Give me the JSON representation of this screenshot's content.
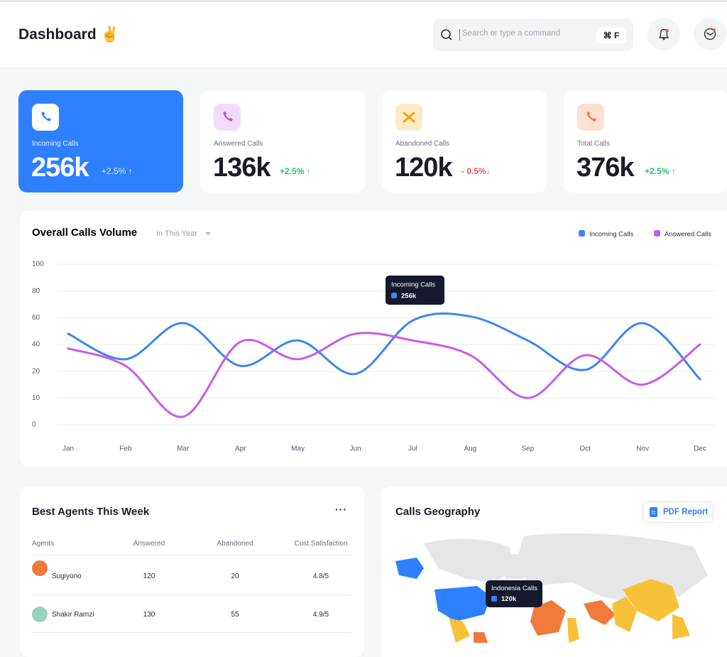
{
  "header": {
    "title": "Dashboard ✌",
    "search_placeholder": "Search or type a command",
    "shortcut": "⌘ F"
  },
  "stats": [
    {
      "label": "Incoming Calls",
      "value": "256k",
      "change": "+2.5% ↑"
    },
    {
      "label": "Answered Calls",
      "value": "136k",
      "change": "+2.5% ↑"
    },
    {
      "label": "Abandoned Calls",
      "value": "120k",
      "change": "- 0.5%↓"
    },
    {
      "label": "Total Calls",
      "value": "376k",
      "change": "+2.5% ↑"
    }
  ],
  "chart_data": {
    "type": "line",
    "title": "Overall Calls Volume",
    "period": "In This Year",
    "categories": [
      "Jan",
      "Feb",
      "Mar",
      "Apr",
      "May",
      "Jun",
      "Jul",
      "Aug",
      "Sep",
      "Oct",
      "Nov",
      "Dec"
    ],
    "series": [
      {
        "name": "Incoming Calls",
        "color": "#3d86ef",
        "values": [
          48,
          29,
          56,
          24,
          43,
          19,
          58,
          61,
          43,
          21,
          56,
          17
        ]
      },
      {
        "name": "Answered Calls",
        "color": "#c65ce8",
        "values": [
          37,
          24,
          3,
          42,
          29,
          48,
          43,
          32,
          10,
          32,
          15,
          40
        ]
      }
    ],
    "ylim": [
      0,
      100
    ],
    "yticks": [
      0,
      10,
      20,
      40,
      60,
      80,
      100
    ],
    "grid": true,
    "legend": "top-right",
    "tooltip": {
      "title": "Incoming Calls",
      "value": "256k"
    }
  },
  "agents": {
    "title": "Best Agents This Week",
    "columns": [
      "Agents",
      "Answered",
      "Abandoned",
      "Cust.Satisfaction"
    ],
    "rows": [
      [
        "Sugiyono",
        "120",
        "20",
        "4.8/5"
      ],
      [
        "Shakir Ramzi",
        "130",
        "55",
        "4.9/5"
      ]
    ]
  },
  "geography": {
    "title": "Calls Geography",
    "button": "PDF Report",
    "tooltip": {
      "title": "Indonesia Calls",
      "value": "120k"
    }
  }
}
